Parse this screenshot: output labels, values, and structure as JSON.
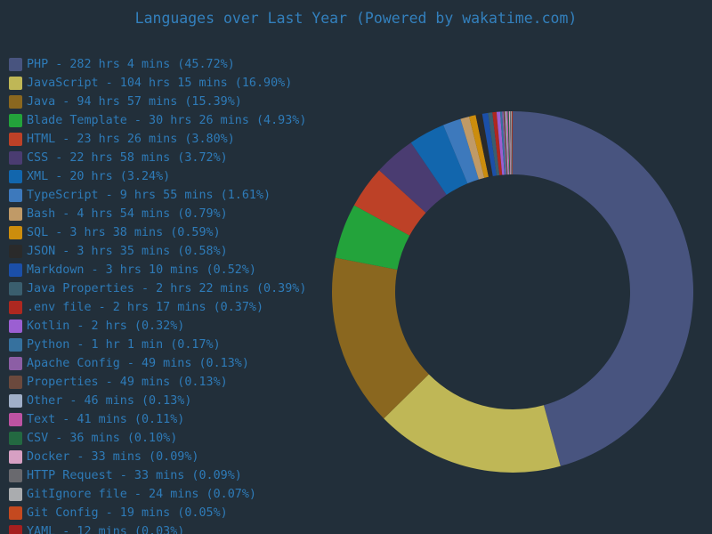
{
  "title": "Languages over Last Year (Powered by wakatime.com)",
  "theme": {
    "background": "#222f3a",
    "title_color": "#3380bd",
    "legend_text_color": "#2e7bb8"
  },
  "chart_data": {
    "type": "pie",
    "donut": true,
    "title": "Languages over Last Year (Powered by wakatime.com)",
    "legend_position": "left",
    "start_angle": "top",
    "direction": "clockwise",
    "inner_radius_ratio": 0.65,
    "slices": [
      {
        "label": "PHP",
        "time": "282 hrs 4 mins",
        "percent": 45.72,
        "color": "#48547f"
      },
      {
        "label": "JavaScript",
        "time": "104 hrs 15 mins",
        "percent": 16.9,
        "color": "#bfb756"
      },
      {
        "label": "Java",
        "time": "94 hrs 57 mins",
        "percent": 15.39,
        "color": "#8a671f"
      },
      {
        "label": "Blade Template",
        "time": "30 hrs 26 mins",
        "percent": 4.93,
        "color": "#23a33b"
      },
      {
        "label": "HTML",
        "time": "23 hrs 26 mins",
        "percent": 3.8,
        "color": "#bd4127"
      },
      {
        "label": "CSS",
        "time": "22 hrs 58 mins",
        "percent": 3.72,
        "color": "#4a3c71"
      },
      {
        "label": "XML",
        "time": "20 hrs",
        "percent": 3.24,
        "color": "#1266ad"
      },
      {
        "label": "TypeScript",
        "time": "9 hrs 55 mins",
        "percent": 1.61,
        "color": "#3d79bc"
      },
      {
        "label": "Bash",
        "time": "4 hrs 54 mins",
        "percent": 0.79,
        "color": "#c09a67"
      },
      {
        "label": "SQL",
        "time": "3 hrs 38 mins",
        "percent": 0.59,
        "color": "#cc8d0d"
      },
      {
        "label": "JSON",
        "time": "3 hrs 35 mins",
        "percent": 0.58,
        "color": "#2a2a2a"
      },
      {
        "label": "Markdown",
        "time": "3 hrs 10 mins",
        "percent": 0.52,
        "color": "#1b4fa8"
      },
      {
        "label": "Java Properties",
        "time": "2 hrs 22 mins",
        "percent": 0.39,
        "color": "#3a5e6e"
      },
      {
        "label": ".env file",
        "time": "2 hrs 17 mins",
        "percent": 0.37,
        "color": "#ad2820"
      },
      {
        "label": "Kotlin",
        "time": "2 hrs",
        "percent": 0.32,
        "color": "#9b5fd2"
      },
      {
        "label": "Python",
        "time": "1 hr 1 min",
        "percent": 0.17,
        "color": "#36719e"
      },
      {
        "label": "Apache Config",
        "time": "49 mins",
        "percent": 0.13,
        "color": "#8c5ea5"
      },
      {
        "label": "Properties",
        "time": "49 mins",
        "percent": 0.13,
        "color": "#6b493d"
      },
      {
        "label": "Other",
        "time": "46 mins",
        "percent": 0.13,
        "color": "#a0afc8"
      },
      {
        "label": "Text",
        "time": "41 mins",
        "percent": 0.11,
        "color": "#bd53a2"
      },
      {
        "label": "CSV",
        "time": "36 mins",
        "percent": 0.1,
        "color": "#236941"
      },
      {
        "label": "Docker",
        "time": "33 mins",
        "percent": 0.09,
        "color": "#d7a0c3"
      },
      {
        "label": "HTTP Request",
        "time": "33 mins",
        "percent": 0.09,
        "color": "#69696e"
      },
      {
        "label": "GitIgnore file",
        "time": "24 mins",
        "percent": 0.07,
        "color": "#aaacaf"
      },
      {
        "label": "Git Config",
        "time": "19 mins",
        "percent": 0.05,
        "color": "#c4491f"
      },
      {
        "label": "YAML",
        "time": "12 mins",
        "percent": 0.03,
        "color": "#a51f1f"
      }
    ]
  }
}
